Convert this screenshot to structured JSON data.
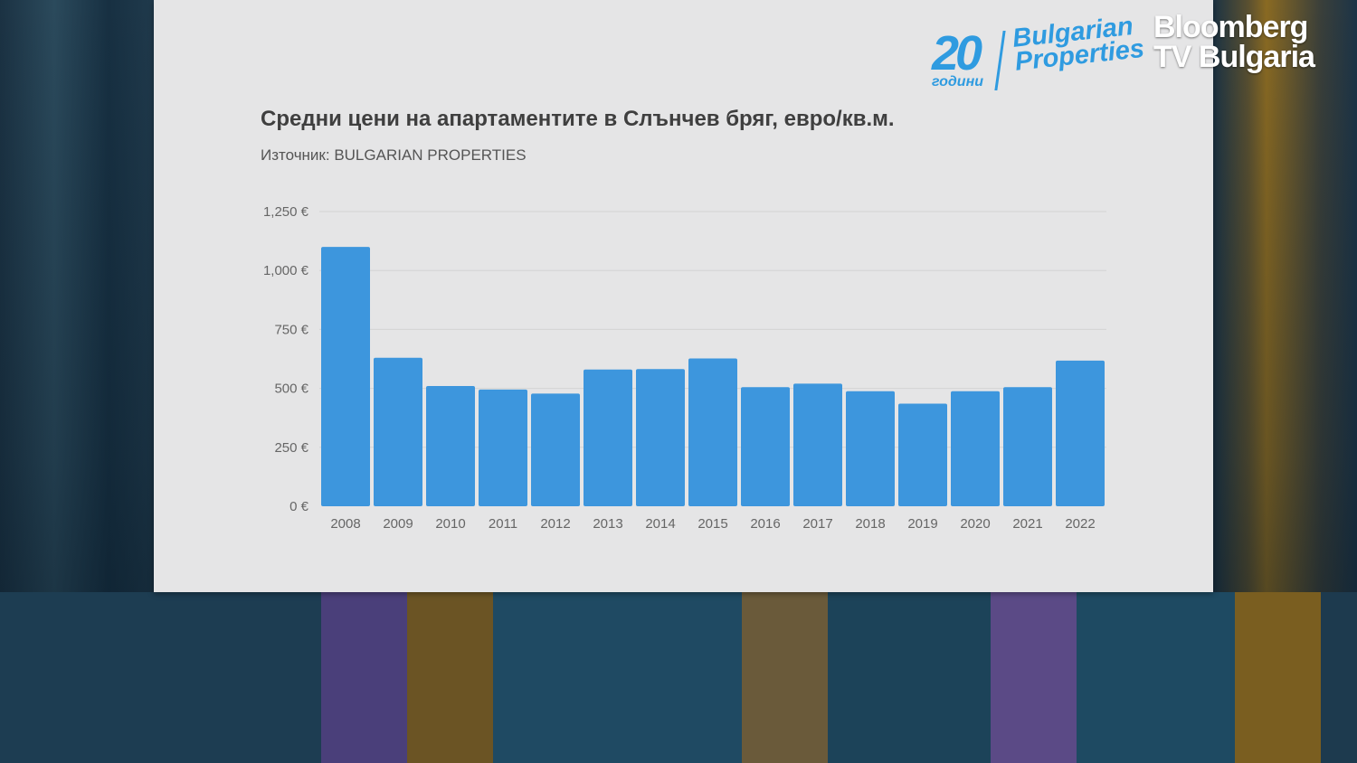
{
  "broadcast": {
    "channel_line1": "Bloomberg",
    "channel_line2": "TV Bulgaria"
  },
  "logo": {
    "number": "20",
    "years_word": "години",
    "brand_line1": "Bulgarian",
    "brand_line2": "Properties",
    "color": "#2f9be0"
  },
  "chart_data": {
    "type": "bar",
    "title": "Средни цени на апартаментите в Слънчев бряг, евро/кв.м.",
    "subtitle": "Източник: BULGARIAN PROPERTIES",
    "categories": [
      "2008",
      "2009",
      "2010",
      "2011",
      "2012",
      "2013",
      "2014",
      "2015",
      "2016",
      "2017",
      "2018",
      "2019",
      "2020",
      "2021",
      "2022"
    ],
    "values": [
      1100,
      630,
      510,
      495,
      478,
      580,
      582,
      627,
      505,
      520,
      488,
      435,
      488,
      505,
      618
    ],
    "ylim": [
      0,
      1250
    ],
    "yticks": [
      0,
      250,
      500,
      750,
      1000,
      1250
    ],
    "ytick_labels": [
      "0 €",
      "250 €",
      "500 €",
      "750 €",
      "1,000 €",
      "1,250 €"
    ],
    "bar_color": "#3d96dd",
    "grid": true,
    "xlabel": "",
    "ylabel": ""
  }
}
